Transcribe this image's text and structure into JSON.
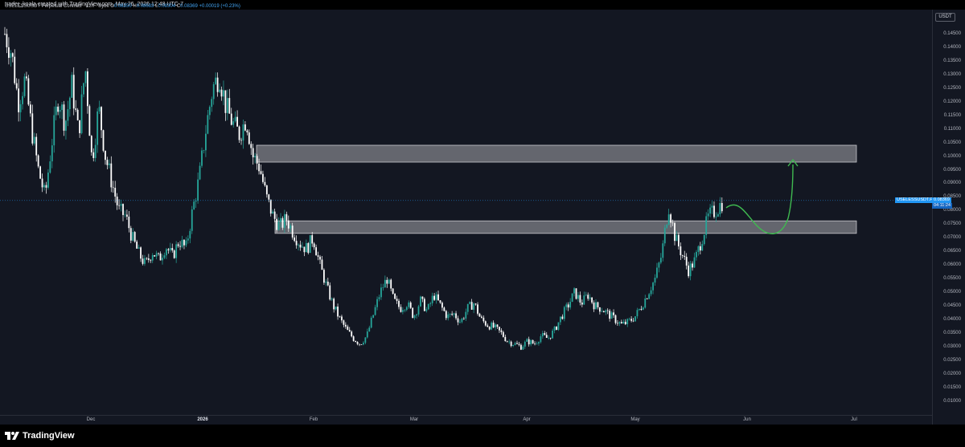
{
  "header": {
    "caption": "trader_koala created with TradingView.com, May 26, 2026 12:48 UTC-7"
  },
  "legend": {
    "symbol": "USELESSUSDT Perpetual Contract · 12h · Bybit",
    "o_label": "O",
    "o_value": "0.08350",
    "h_label": "H",
    "h_value": "0.08683",
    "l_label": "L",
    "l_value": "0.08304",
    "c_label": "C",
    "c_value": "0.08369",
    "change": "+0.00019 (+0.23%)"
  },
  "price_axis": {
    "currency": "USDT",
    "ticks": [
      "0.14500",
      "0.14000",
      "0.13500",
      "0.13000",
      "0.12500",
      "0.12000",
      "0.11500",
      "0.11000",
      "0.10500",
      "0.10000",
      "0.09500",
      "0.09000",
      "0.08500",
      "0.08000",
      "0.07500",
      "0.07000",
      "0.06500",
      "0.06000",
      "0.05500",
      "0.05000",
      "0.04500",
      "0.04000",
      "0.03500",
      "0.03000",
      "0.02500",
      "0.02000",
      "0.01500",
      "0.01000"
    ]
  },
  "price_tag": {
    "name": "USELESSUSDT.P",
    "price": "0.08369",
    "countdown": "04:11:24"
  },
  "time_axis": {
    "labels": [
      {
        "text": "Dec",
        "bold": false
      },
      {
        "text": "2026",
        "bold": true
      },
      {
        "text": "Feb",
        "bold": false
      },
      {
        "text": "Mar",
        "bold": false
      },
      {
        "text": "Apr",
        "bold": false
      },
      {
        "text": "May",
        "bold": false
      },
      {
        "text": "Jun",
        "bold": false
      },
      {
        "text": "Jul",
        "bold": false
      }
    ]
  },
  "zones": [
    {
      "label": "resistance-zone-upper",
      "top_price": 0.104,
      "bottom_price": 0.0978
    },
    {
      "label": "support-zone-lower",
      "top_price": 0.0762,
      "bottom_price": 0.0716
    }
  ],
  "chart_data": {
    "type": "candlestick",
    "title": "",
    "ylim": [
      0.008,
      0.15
    ],
    "close_path": [
      0.145,
      0.138,
      0.12,
      0.128,
      0.11,
      0.095,
      0.085,
      0.105,
      0.122,
      0.112,
      0.126,
      0.108,
      0.133,
      0.098,
      0.118,
      0.1,
      0.09,
      0.08,
      0.078,
      0.07,
      0.064,
      0.06,
      0.065,
      0.062,
      0.067,
      0.063,
      0.069,
      0.066,
      0.08,
      0.092,
      0.11,
      0.125,
      0.13,
      0.118,
      0.112,
      0.108,
      0.114,
      0.1,
      0.096,
      0.085,
      0.078,
      0.074,
      0.077,
      0.072,
      0.068,
      0.066,
      0.07,
      0.06,
      0.052,
      0.045,
      0.04,
      0.036,
      0.033,
      0.031,
      0.034,
      0.042,
      0.05,
      0.055,
      0.047,
      0.044,
      0.046,
      0.041,
      0.047,
      0.043,
      0.049,
      0.045,
      0.041,
      0.042,
      0.039,
      0.044,
      0.046,
      0.04,
      0.038,
      0.037,
      0.035,
      0.032,
      0.031,
      0.03,
      0.032,
      0.031,
      0.034,
      0.033,
      0.036,
      0.041,
      0.045,
      0.05,
      0.046,
      0.049,
      0.045,
      0.044,
      0.042,
      0.04,
      0.038,
      0.039,
      0.041,
      0.045,
      0.05,
      0.055,
      0.064,
      0.082,
      0.07,
      0.064,
      0.058,
      0.062,
      0.07,
      0.078,
      0.08,
      0.083
    ],
    "last_close": 0.08369,
    "projection": "up arrow from ~0.0837 to ~0.1010"
  }
}
